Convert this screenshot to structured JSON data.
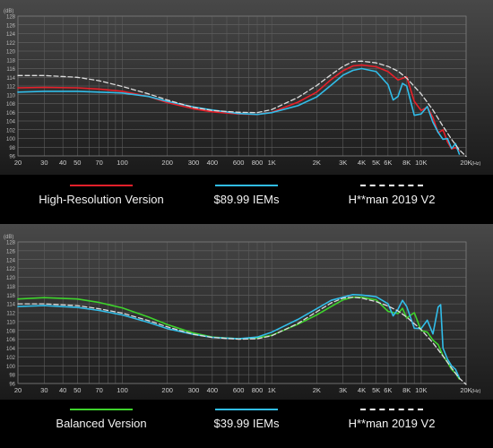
{
  "chart_data": [
    {
      "type": "line",
      "title": "",
      "xlabel": "(Hz)",
      "ylabel": "(dB)",
      "x_log": true,
      "xlim": [
        20,
        20000
      ],
      "ylim": [
        96,
        128
      ],
      "x_ticks": [
        20,
        30,
        40,
        50,
        70,
        100,
        200,
        300,
        400,
        600,
        800,
        1000,
        2000,
        3000,
        4000,
        5000,
        6000,
        8000,
        10000,
        20000
      ],
      "x_tick_labels": [
        "20",
        "30",
        "40",
        "50",
        "70",
        "100",
        "200",
        "300",
        "400",
        "600",
        "800",
        "1K",
        "2K",
        "3K",
        "4K",
        "5K",
        "6K",
        "8K",
        "10K",
        "20K"
      ],
      "y_ticks": [
        96,
        98,
        100,
        102,
        104,
        106,
        108,
        110,
        112,
        114,
        116,
        118,
        120,
        122,
        124,
        126,
        128
      ],
      "grid": true,
      "legend_position": "bottom",
      "series": [
        {
          "name": "High-Resolution Version",
          "color": "#e8202a",
          "style": "solid",
          "points": [
            [
              20,
              111.6
            ],
            [
              30,
              111.7
            ],
            [
              50,
              111.6
            ],
            [
              70,
              111.3
            ],
            [
              100,
              110.8
            ],
            [
              150,
              109.6
            ],
            [
              200,
              108.2
            ],
            [
              300,
              106.8
            ],
            [
              400,
              106.1
            ],
            [
              600,
              105.6
            ],
            [
              800,
              105.5
            ],
            [
              1000,
              106
            ],
            [
              1500,
              108.3
            ],
            [
              2000,
              110.6
            ],
            [
              2500,
              113.5
            ],
            [
              3000,
              115.5
            ],
            [
              3500,
              116.6
            ],
            [
              4000,
              116.8
            ],
            [
              5000,
              116.4
            ],
            [
              6000,
              115.3
            ],
            [
              7000,
              113.4
            ],
            [
              8000,
              114.1
            ],
            [
              9000,
              108.5
            ],
            [
              10000,
              106.4
            ],
            [
              11000,
              107.2
            ],
            [
              12000,
              104.8
            ],
            [
              13000,
              101.3
            ],
            [
              14000,
              102
            ],
            [
              15000,
              99.2
            ],
            [
              16000,
              97.6
            ],
            [
              17000,
              97.9
            ],
            [
              18000,
              97.2
            ]
          ]
        },
        {
          "name": "$89.99 IEMs",
          "color": "#31bde9",
          "style": "solid",
          "points": [
            [
              20,
              110.6
            ],
            [
              30,
              110.8
            ],
            [
              50,
              110.8
            ],
            [
              70,
              110.6
            ],
            [
              100,
              110.4
            ],
            [
              150,
              109.6
            ],
            [
              200,
              108.5
            ],
            [
              300,
              107.2
            ],
            [
              400,
              106.5
            ],
            [
              600,
              105.7
            ],
            [
              800,
              105.5
            ],
            [
              1000,
              105.9
            ],
            [
              1500,
              107.5
            ],
            [
              2000,
              109.5
            ],
            [
              2500,
              112.2
            ],
            [
              3000,
              114.5
            ],
            [
              3500,
              115.6
            ],
            [
              4000,
              116
            ],
            [
              5000,
              115.3
            ],
            [
              6000,
              112.3
            ],
            [
              6500,
              108.8
            ],
            [
              7000,
              109.6
            ],
            [
              7500,
              112.6
            ],
            [
              8000,
              112
            ],
            [
              9000,
              105.3
            ],
            [
              10000,
              105.6
            ],
            [
              11000,
              107.3
            ],
            [
              12000,
              103.7
            ],
            [
              13000,
              101.4
            ],
            [
              14000,
              99.8
            ],
            [
              15000,
              100
            ],
            [
              16000,
              97.7
            ],
            [
              17000,
              98.8
            ],
            [
              18000,
              96.4
            ]
          ]
        },
        {
          "name": "H**man 2019 V2",
          "color": "#dddddd",
          "style": "dashed",
          "points": [
            [
              20,
              114.4
            ],
            [
              30,
              114.4
            ],
            [
              50,
              114
            ],
            [
              70,
              113.2
            ],
            [
              100,
              111.9
            ],
            [
              150,
              110.2
            ],
            [
              200,
              108.8
            ],
            [
              300,
              107.1
            ],
            [
              400,
              106.4
            ],
            [
              600,
              106
            ],
            [
              800,
              105.9
            ],
            [
              1000,
              106.6
            ],
            [
              1500,
              109.4
            ],
            [
              2000,
              112.1
            ],
            [
              2500,
              114.6
            ],
            [
              3000,
              116.5
            ],
            [
              3500,
              117.6
            ],
            [
              4000,
              117.7
            ],
            [
              5000,
              117.3
            ],
            [
              6000,
              116.5
            ],
            [
              7000,
              115.4
            ],
            [
              8000,
              113.8
            ],
            [
              10000,
              110.2
            ],
            [
              12000,
              106.5
            ],
            [
              14000,
              102.8
            ],
            [
              16000,
              99.8
            ],
            [
              18000,
              97.4
            ],
            [
              20000,
              95.9
            ]
          ]
        }
      ]
    },
    {
      "type": "line",
      "title": "",
      "xlabel": "(Hz)",
      "ylabel": "(dB)",
      "x_log": true,
      "xlim": [
        20,
        20000
      ],
      "ylim": [
        96,
        128
      ],
      "x_ticks": [
        20,
        30,
        40,
        50,
        70,
        100,
        200,
        300,
        400,
        600,
        800,
        1000,
        2000,
        3000,
        4000,
        5000,
        6000,
        8000,
        10000,
        20000
      ],
      "x_tick_labels": [
        "20",
        "30",
        "40",
        "50",
        "70",
        "100",
        "200",
        "300",
        "400",
        "600",
        "800",
        "1K",
        "2K",
        "3K",
        "4K",
        "5K",
        "6K",
        "8K",
        "10K",
        "20K"
      ],
      "y_ticks": [
        96,
        98,
        100,
        102,
        104,
        106,
        108,
        110,
        112,
        114,
        116,
        118,
        120,
        122,
        124,
        126,
        128
      ],
      "grid": true,
      "legend_position": "bottom",
      "series": [
        {
          "name": "Balanced Version",
          "color": "#3ed22c",
          "style": "solid",
          "points": [
            [
              20,
              115.1
            ],
            [
              30,
              115.4
            ],
            [
              50,
              115.1
            ],
            [
              70,
              114.3
            ],
            [
              100,
              113.1
            ],
            [
              150,
              111
            ],
            [
              200,
              109.3
            ],
            [
              300,
              107.4
            ],
            [
              400,
              106.5
            ],
            [
              600,
              106.1
            ],
            [
              800,
              106.3
            ],
            [
              1000,
              106.9
            ],
            [
              1500,
              109.4
            ],
            [
              2000,
              111.5
            ],
            [
              2500,
              113.4
            ],
            [
              3000,
              114.9
            ],
            [
              3500,
              115.5
            ],
            [
              4000,
              115.5
            ],
            [
              5000,
              114.9
            ],
            [
              6000,
              112.3
            ],
            [
              7000,
              111.8
            ],
            [
              7500,
              113
            ],
            [
              8000,
              110.8
            ],
            [
              9000,
              112
            ],
            [
              10000,
              108
            ],
            [
              11000,
              107.6
            ],
            [
              12000,
              105.8
            ],
            [
              13000,
              104.8
            ],
            [
              14000,
              102.3
            ],
            [
              15000,
              100.8
            ],
            [
              16000,
              99.2
            ],
            [
              17000,
              98.3
            ],
            [
              18000,
              97
            ]
          ]
        },
        {
          "name": "$39.99 IEMs",
          "color": "#31bde9",
          "style": "solid",
          "points": [
            [
              20,
              113.4
            ],
            [
              30,
              113.6
            ],
            [
              50,
              113.2
            ],
            [
              70,
              112.5
            ],
            [
              100,
              111.5
            ],
            [
              150,
              109.8
            ],
            [
              200,
              108.4
            ],
            [
              300,
              107.1
            ],
            [
              400,
              106.4
            ],
            [
              600,
              106.1
            ],
            [
              800,
              106.5
            ],
            [
              1000,
              107.6
            ],
            [
              1500,
              110.5
            ],
            [
              2000,
              112.9
            ],
            [
              2500,
              114.8
            ],
            [
              3000,
              115.5
            ],
            [
              3500,
              116.1
            ],
            [
              4000,
              116
            ],
            [
              5000,
              115.6
            ],
            [
              6000,
              114
            ],
            [
              6500,
              111.3
            ],
            [
              7000,
              112.8
            ],
            [
              7500,
              114.8
            ],
            [
              8000,
              113.4
            ],
            [
              9000,
              108.5
            ],
            [
              10000,
              108.4
            ],
            [
              11000,
              110.3
            ],
            [
              12000,
              107.2
            ],
            [
              13000,
              113.3
            ],
            [
              13500,
              113.8
            ],
            [
              14000,
              104
            ],
            [
              15000,
              101.5
            ],
            [
              16000,
              100
            ],
            [
              17000,
              99.2
            ],
            [
              18000,
              97.3
            ]
          ]
        },
        {
          "name": "H**man 2019 V2",
          "color": "#dddddd",
          "style": "dashed",
          "points": [
            [
              20,
              114
            ],
            [
              30,
              114
            ],
            [
              50,
              113.6
            ],
            [
              70,
              112.9
            ],
            [
              100,
              111.9
            ],
            [
              150,
              110.2
            ],
            [
              200,
              108.8
            ],
            [
              300,
              107.1
            ],
            [
              400,
              106.4
            ],
            [
              600,
              106
            ],
            [
              800,
              106.1
            ],
            [
              1000,
              106.8
            ],
            [
              1500,
              109.6
            ],
            [
              2000,
              112.2
            ],
            [
              2500,
              114.2
            ],
            [
              3000,
              115.3
            ],
            [
              3500,
              115.5
            ],
            [
              4000,
              115.3
            ],
            [
              5000,
              114.5
            ],
            [
              6000,
              113.5
            ],
            [
              7000,
              112.4
            ],
            [
              8000,
              111
            ],
            [
              10000,
              108.2
            ],
            [
              12000,
              105.2
            ],
            [
              14000,
              102.2
            ],
            [
              16000,
              99.5
            ],
            [
              18000,
              97.2
            ],
            [
              20000,
              95.8
            ]
          ]
        }
      ]
    }
  ]
}
